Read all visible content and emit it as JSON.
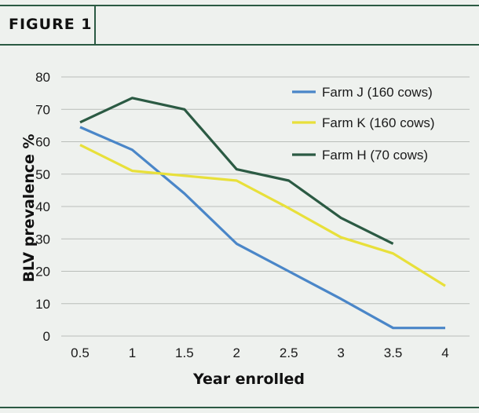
{
  "figure": {
    "label": "FIGURE 1"
  },
  "chart_data": {
    "type": "line",
    "title": "",
    "xlabel": "Year enrolled",
    "ylabel": "BLV prevalence %",
    "x": [
      0.5,
      1,
      1.5,
      2,
      2.5,
      3,
      3.5,
      4
    ],
    "x_tick_labels": [
      "0.5",
      "1",
      "1.5",
      "2",
      "2.5",
      "3",
      "3.5",
      "4"
    ],
    "y_ticks": [
      0,
      10,
      20,
      30,
      40,
      50,
      60,
      70,
      80
    ],
    "ylim": [
      0,
      80
    ],
    "grid": "horizontal",
    "legend_position": "top-right",
    "series": [
      {
        "name": "Farm J (160 cows)",
        "color": "#4a86c8",
        "points": [
          [
            0.5,
            64.5
          ],
          [
            1,
            57.5
          ],
          [
            1.5,
            44
          ],
          [
            2,
            28.5
          ],
          [
            2.5,
            20
          ],
          [
            3,
            11.5
          ],
          [
            3.5,
            2.5
          ],
          [
            4,
            2.5
          ]
        ]
      },
      {
        "name": "Farm K (160 cows)",
        "color": "#e8e03a",
        "points": [
          [
            0.5,
            59
          ],
          [
            1,
            51
          ],
          [
            1.5,
            49.5
          ],
          [
            2,
            48
          ],
          [
            2.5,
            39.5
          ],
          [
            3,
            30.5
          ],
          [
            3.5,
            25.5
          ],
          [
            4,
            15.5
          ]
        ]
      },
      {
        "name": "Farm H (70 cows)",
        "color": "#2b5a43",
        "points": [
          [
            0.5,
            66
          ],
          [
            1,
            73.5
          ],
          [
            1.5,
            70
          ],
          [
            2,
            51.5
          ],
          [
            2.5,
            48
          ],
          [
            3,
            36.5
          ],
          [
            3.5,
            28.5
          ]
        ]
      }
    ]
  }
}
